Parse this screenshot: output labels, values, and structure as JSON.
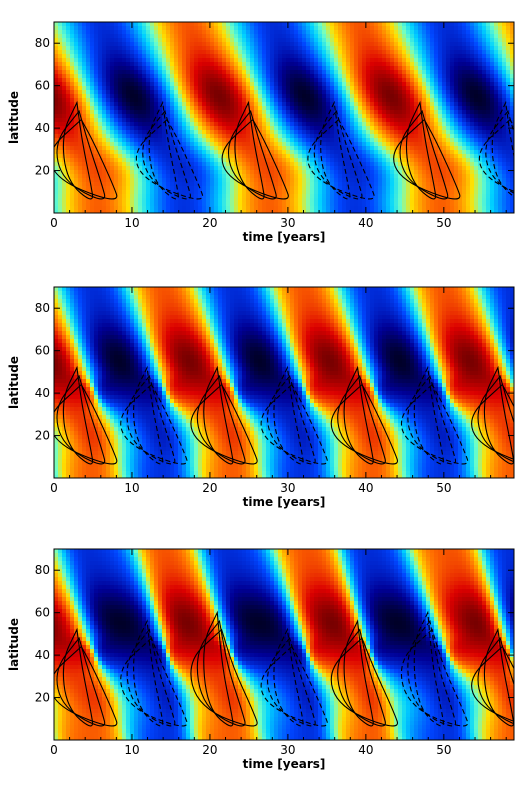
{
  "chart_data": [
    {
      "type": "heatmap",
      "title": "",
      "xlabel": "time [years]",
      "ylabel": "latitude",
      "xlim": [
        0,
        59
      ],
      "ylim": [
        0,
        90
      ],
      "x_ticks": [
        "0",
        "10",
        "20",
        "30",
        "40",
        "50"
      ],
      "y_ticks": [
        "20",
        "40",
        "60",
        "80"
      ],
      "colormap": "jet (blue-cyan-yellow-red) with dark-blue and dark-red extremes",
      "contours": "black solid (positive) and dashed (negative)",
      "period_years": 22,
      "regime": "regular"
    },
    {
      "type": "heatmap",
      "title": "",
      "xlabel": "time [years]",
      "ylabel": "latitude",
      "xlim": [
        0,
        59
      ],
      "ylim": [
        0,
        90
      ],
      "x_ticks": [
        "0",
        "10",
        "20",
        "30",
        "40",
        "50"
      ],
      "y_ticks": [
        "20",
        "40",
        "60",
        "80"
      ],
      "colormap": "jet (blue-cyan-yellow-red) with dark-blue and dark-red extremes",
      "contours": "black solid (positive) and dashed (negative)",
      "period_years": 18,
      "regime": "sharp front near latitude 40"
    },
    {
      "type": "heatmap",
      "title": "",
      "xlabel": "time [years]",
      "ylabel": "latitude",
      "xlim": [
        0,
        59
      ],
      "ylim": [
        0,
        90
      ],
      "x_ticks": [
        "0",
        "10",
        "20",
        "30",
        "40",
        "50"
      ],
      "y_ticks": [
        "20",
        "40",
        "60",
        "80"
      ],
      "colormap": "jet (blue-cyan-yellow-red) with dark-blue and dark-red extremes",
      "contours": "black solid (positive) and dashed (negative)",
      "period_years": 18,
      "regime": "irregular"
    }
  ]
}
